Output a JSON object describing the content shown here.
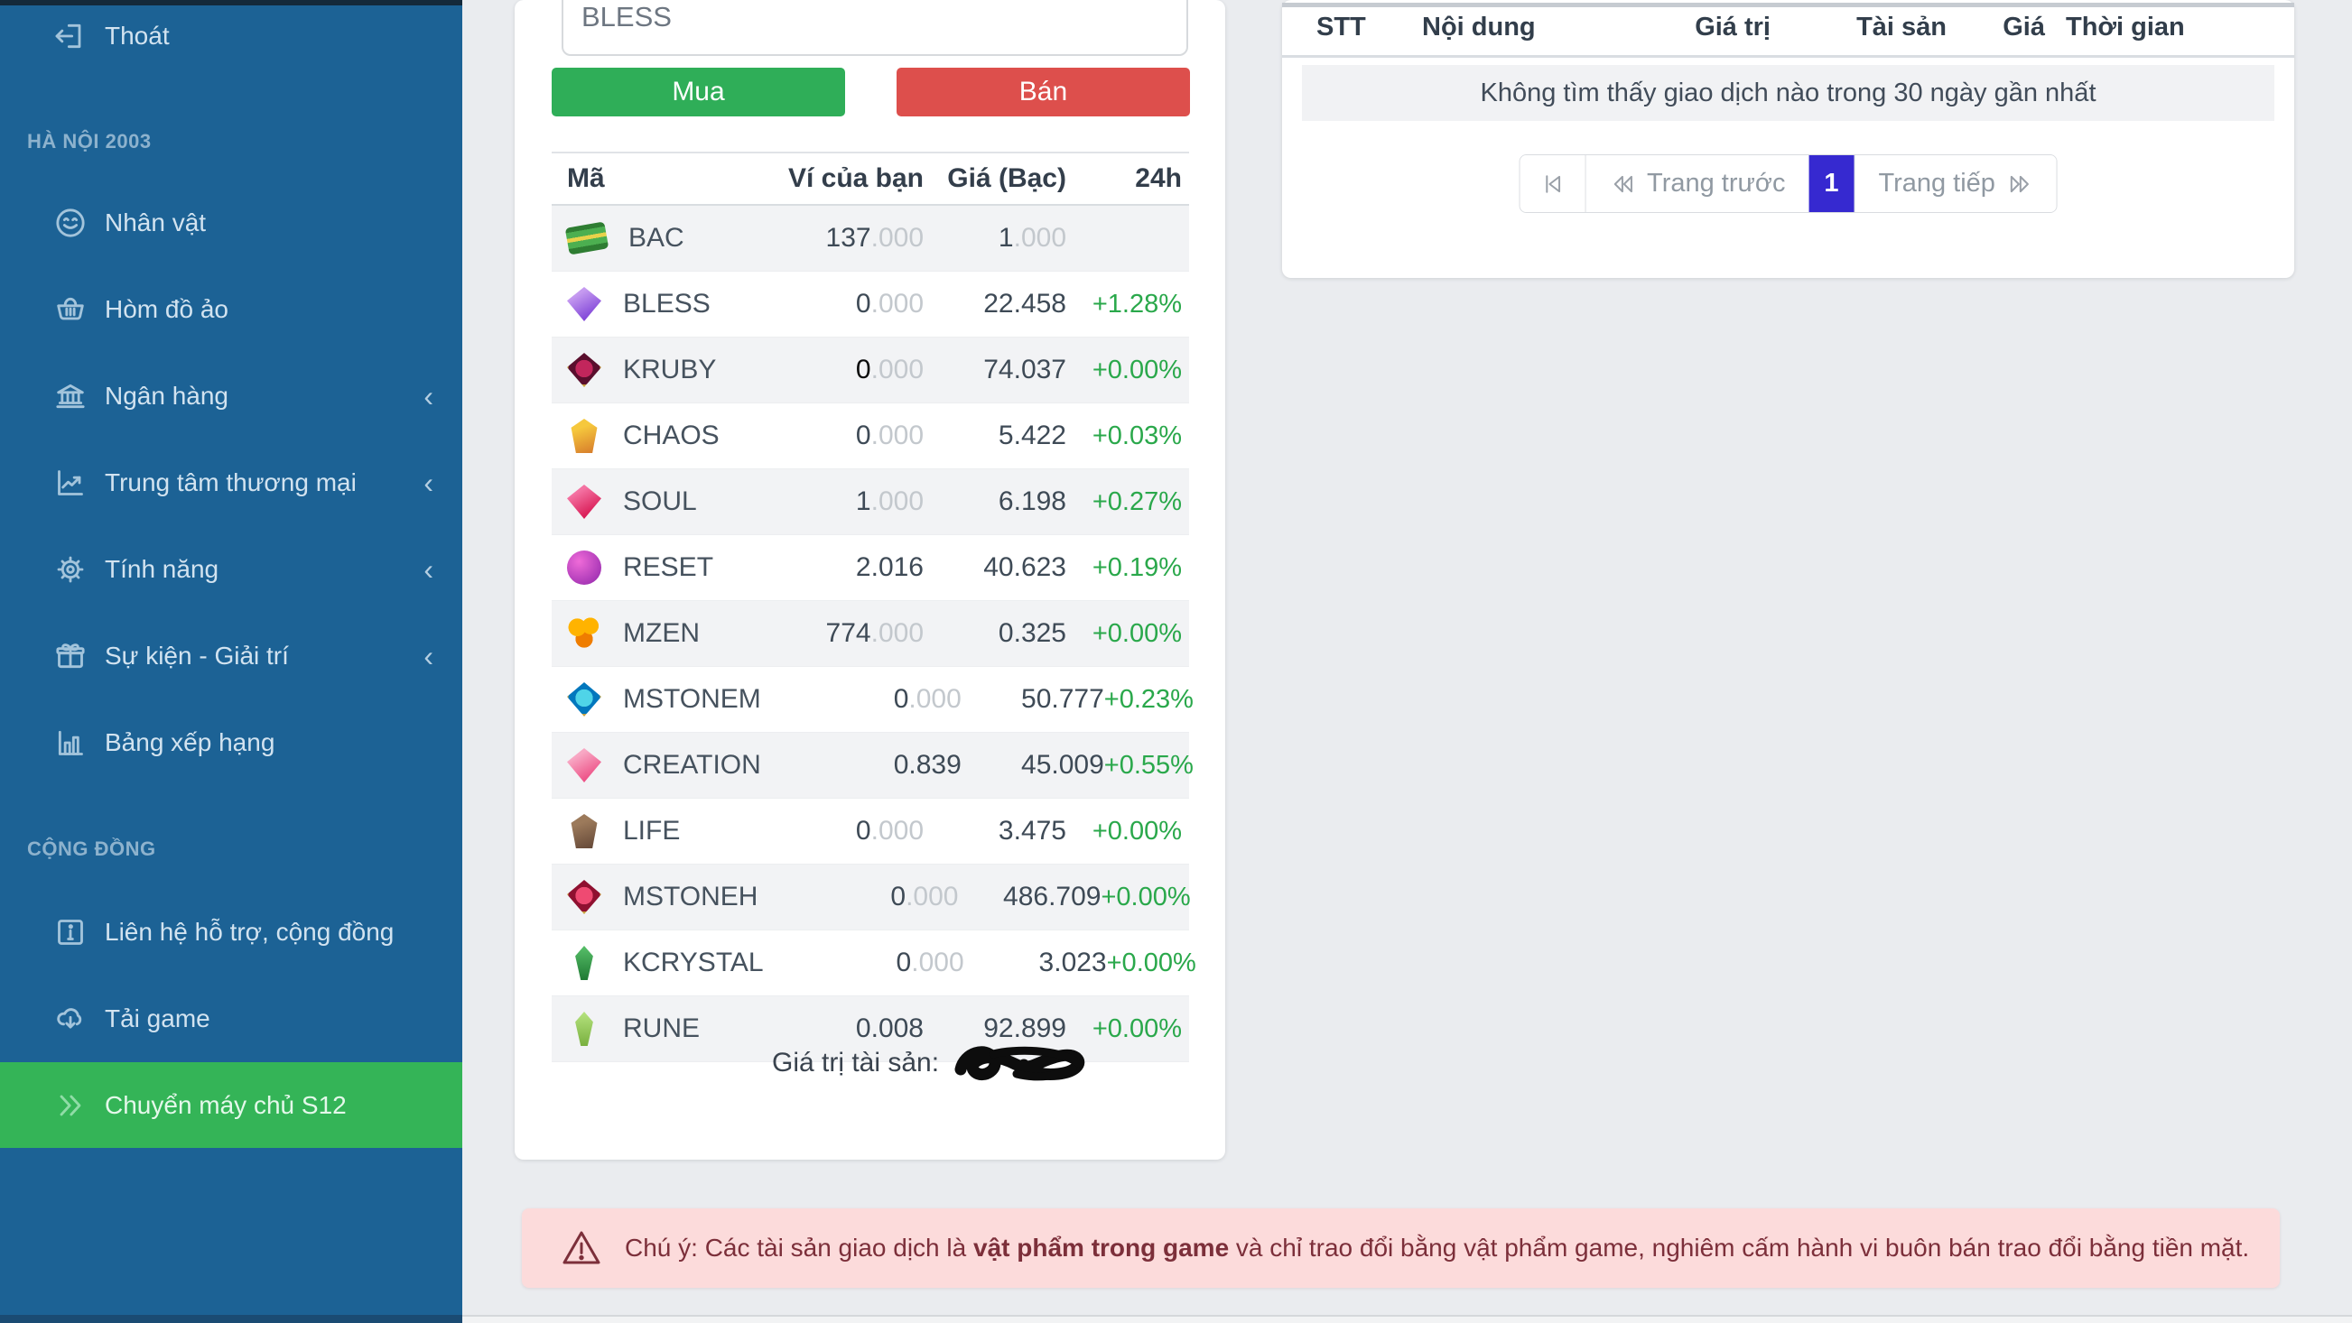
{
  "colors": {
    "sidebar_bg": "#1c6295",
    "sidebar_active_green": "#34b457",
    "buy_green": "#2fae58",
    "sell_red": "#dd4f4c",
    "page_active_blue": "#3629d0",
    "change_up_green": "#2aa84b",
    "warning_bg": "#fcdbdb",
    "warning_text": "#7c2f3a"
  },
  "sidebar": {
    "logout_label": "Thoát",
    "sections": [
      {
        "label": "HÀ NỘI 2003"
      },
      {
        "label": "CỘNG ĐỒNG"
      }
    ],
    "items": [
      {
        "label": "Nhân vật"
      },
      {
        "label": "Hòm đồ ảo"
      },
      {
        "label": "Ngân hàng",
        "chevron": "‹"
      },
      {
        "label": "Trung tâm thương mại",
        "chevron": "‹"
      },
      {
        "label": "Tính năng",
        "chevron": "‹"
      },
      {
        "label": "Sự kiện - Giải trí",
        "chevron": "‹"
      },
      {
        "label": "Bảng xếp hạng"
      },
      {
        "label": "Liên hệ hỗ trợ, cộng đồng"
      },
      {
        "label": "Tải game"
      },
      {
        "label": "Chuyển máy chủ S12"
      }
    ],
    "chevron_char": "‹"
  },
  "trade": {
    "search_value": "BLESS",
    "buy_label": "Mua",
    "sell_label": "Bán",
    "total_label": "Giá trị tài sản:",
    "table": {
      "headers": [
        "Mã",
        "Ví của bạn",
        "Giá (Bạc)",
        "24h"
      ],
      "rows": [
        {
          "code": "BAC",
          "wallet_main": "137",
          "wallet_frac": ".000",
          "wallet_class": "num",
          "price_main": "1",
          "price_frac": ".000",
          "change": "",
          "icon": {
            "shape": "money",
            "c1": "#4caf50",
            "c2": "#2e7d32",
            "c3": "#e8d24a"
          }
        },
        {
          "code": "BLESS",
          "wallet_main": "0",
          "wallet_frac": ".000",
          "wallet_class": "num",
          "price_main": "22.458",
          "price_frac": "",
          "change": "+1.28%",
          "icon": {
            "shape": "diamond",
            "c1": "#c59af0",
            "c2": "#7b3fd6"
          }
        },
        {
          "code": "KRUBY",
          "wallet_main": "0",
          "wallet_frac": ".000",
          "wallet_class": "num zero-black",
          "price_main": "74.037",
          "price_frac": "",
          "change": "+0.00%",
          "icon": {
            "shape": "framed",
            "c1": "#c2265c",
            "c2": "#5a0e2d"
          }
        },
        {
          "code": "CHAOS",
          "wallet_main": "0",
          "wallet_frac": ".000",
          "wallet_class": "num",
          "price_main": "5.422",
          "price_frac": "",
          "change": "+0.03%",
          "icon": {
            "shape": "crystal",
            "c1": "#f6c83d",
            "c2": "#d4762a"
          }
        },
        {
          "code": "SOUL",
          "wallet_main": "1",
          "wallet_frac": ".000",
          "wallet_class": "num",
          "price_main": "6.198",
          "price_frac": "",
          "change": "+0.27%",
          "icon": {
            "shape": "diamond",
            "c1": "#f472a2",
            "c2": "#d6134e"
          }
        },
        {
          "code": "RESET",
          "wallet_main": "2.016",
          "wallet_frac": "",
          "wallet_class": "num",
          "price_main": "40.623",
          "price_frac": "",
          "change": "+0.19%",
          "icon": {
            "shape": "orb",
            "c1": "#ef6bd8",
            "c2": "#8e24aa"
          }
        },
        {
          "code": "MZEN",
          "wallet_main": "774",
          "wallet_frac": ".000",
          "wallet_class": "num",
          "price_main": "0.325",
          "price_frac": "",
          "change": "+0.00%",
          "icon": {
            "shape": "coins",
            "c1": "#ffb300",
            "c2": "#ef7d00"
          }
        },
        {
          "code": "MSTONEM",
          "wallet_main": "0",
          "wallet_frac": ".000",
          "wallet_class": "num",
          "price_main": "50.777",
          "price_frac": "",
          "change": "+0.23%",
          "icon": {
            "shape": "framed",
            "c1": "#4fd4e8",
            "c2": "#0277bd"
          }
        },
        {
          "code": "CREATION",
          "wallet_main": "0.839",
          "wallet_frac": "",
          "wallet_class": "num",
          "price_main": "45.009",
          "price_frac": "",
          "change": "+0.55%",
          "icon": {
            "shape": "diamond",
            "c1": "#f8a8c4",
            "c2": "#ec4880"
          }
        },
        {
          "code": "LIFE",
          "wallet_main": "0",
          "wallet_frac": ".000",
          "wallet_class": "num",
          "price_main": "3.475",
          "price_frac": "",
          "change": "+0.00%",
          "icon": {
            "shape": "crystal",
            "c1": "#9c7a5b",
            "c2": "#5f4334"
          }
        },
        {
          "code": "MSTONEH",
          "wallet_main": "0",
          "wallet_frac": ".000",
          "wallet_class": "num",
          "price_main": "486.709",
          "price_frac": "",
          "change": "+0.00%",
          "icon": {
            "shape": "framed",
            "c1": "#ef4a72",
            "c2": "#8f1030"
          }
        },
        {
          "code": "KCRYSTAL",
          "wallet_main": "0",
          "wallet_frac": ".000",
          "wallet_class": "num",
          "price_main": "3.023",
          "price_frac": "",
          "change": "+0.00%",
          "icon": {
            "shape": "blade",
            "c1": "#58c06a",
            "c2": "#1f7a33"
          }
        },
        {
          "code": "RUNE",
          "wallet_main": "0.008",
          "wallet_frac": "",
          "wallet_class": "num",
          "price_main": "92.899",
          "price_frac": "",
          "change": "+0.00%",
          "icon": {
            "shape": "blade",
            "c1": "#b6e37f",
            "c2": "#79b03f"
          }
        }
      ]
    }
  },
  "history": {
    "headers": [
      "STT",
      "Nội dung",
      "Giá trị",
      "Tài sản",
      "Giá",
      "Thời gian"
    ],
    "empty_message": "Không tìm thấy giao dịch nào trong 30 ngày gần nhất",
    "pagination": {
      "prev_label": "Trang trước",
      "current_page": "1",
      "next_label": "Trang tiếp"
    }
  },
  "warning": {
    "prefix": "Chú ý: Các tài sản giao dịch là ",
    "bold": "vật phẩm trong game",
    "suffix": " và chỉ trao đổi bằng vật phẩm game, nghiêm cấm hành vi buôn bán trao đổi bằng tiền mặt."
  }
}
